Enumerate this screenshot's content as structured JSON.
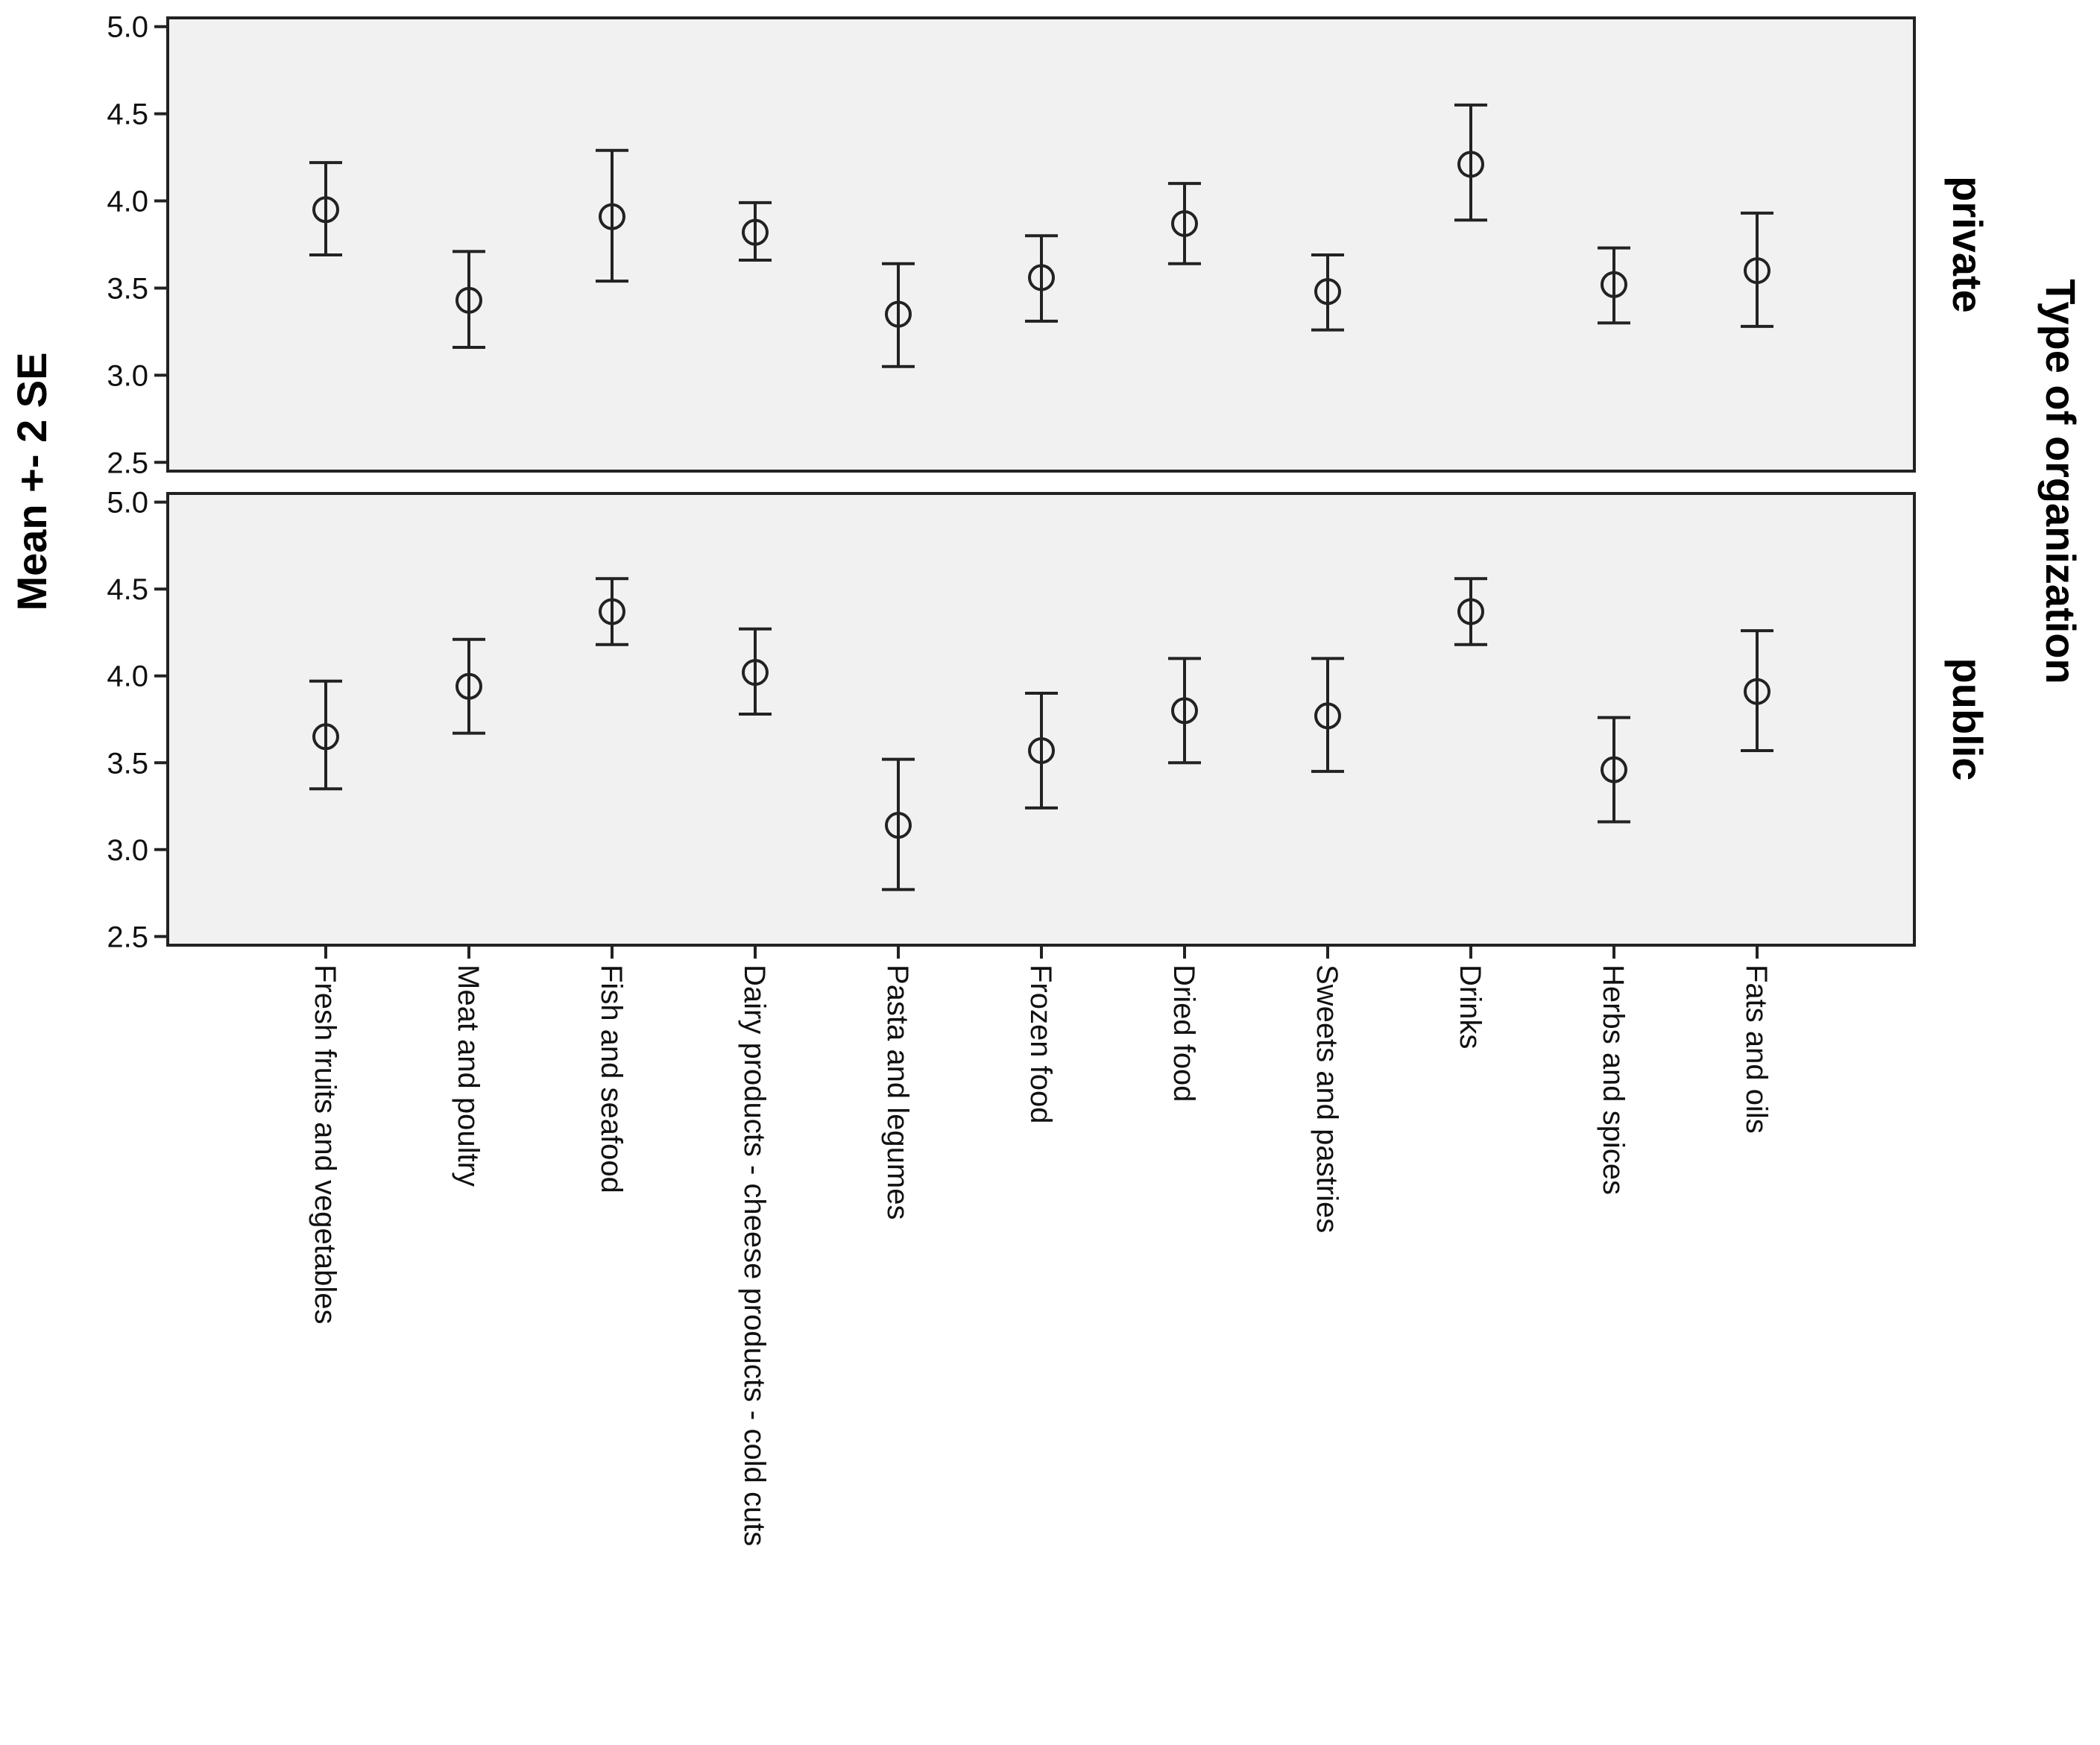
{
  "chart_data": {
    "type": "scatter",
    "subtype": "error-bar",
    "ylabel": "Mean +- 2 SE",
    "facet_title": "Type of organization",
    "ylim": [
      2.45,
      5.05
    ],
    "yticks": [
      2.5,
      3.0,
      3.5,
      4.0,
      4.5,
      5.0
    ],
    "ytick_labels": [
      "2.5",
      "3.0",
      "3.5",
      "4.0",
      "4.5",
      "5.0"
    ],
    "grid": false,
    "categories": [
      "Fresh fruits and vegetables",
      "Meat and poultry",
      "Fish and seafood",
      "Dairy products - cheese products - cold cuts",
      "Pasta and legumes",
      "Frozen food",
      "Dried food",
      "Sweets and pastries",
      "Drinks",
      "Herbs and spices",
      "Fats and oils"
    ],
    "panels": [
      {
        "name": "private",
        "mean": [
          3.95,
          3.43,
          3.91,
          3.82,
          3.35,
          3.56,
          3.87,
          3.48,
          4.21,
          3.52,
          3.6
        ],
        "lower": [
          3.69,
          3.16,
          3.54,
          3.66,
          3.05,
          3.31,
          3.64,
          3.26,
          3.89,
          3.3,
          3.28
        ],
        "upper": [
          4.22,
          3.71,
          4.29,
          3.99,
          3.64,
          3.8,
          4.1,
          3.69,
          4.55,
          3.73,
          3.93
        ]
      },
      {
        "name": "public",
        "mean": [
          3.65,
          3.94,
          4.37,
          4.02,
          3.14,
          3.57,
          3.8,
          3.77,
          4.37,
          3.46,
          3.91
        ],
        "lower": [
          3.35,
          3.67,
          4.18,
          3.78,
          2.77,
          3.24,
          3.5,
          3.45,
          4.18,
          3.16,
          3.57
        ],
        "upper": [
          3.97,
          4.21,
          4.56,
          4.27,
          3.52,
          3.9,
          4.1,
          4.1,
          4.56,
          3.76,
          4.26
        ]
      }
    ]
  }
}
